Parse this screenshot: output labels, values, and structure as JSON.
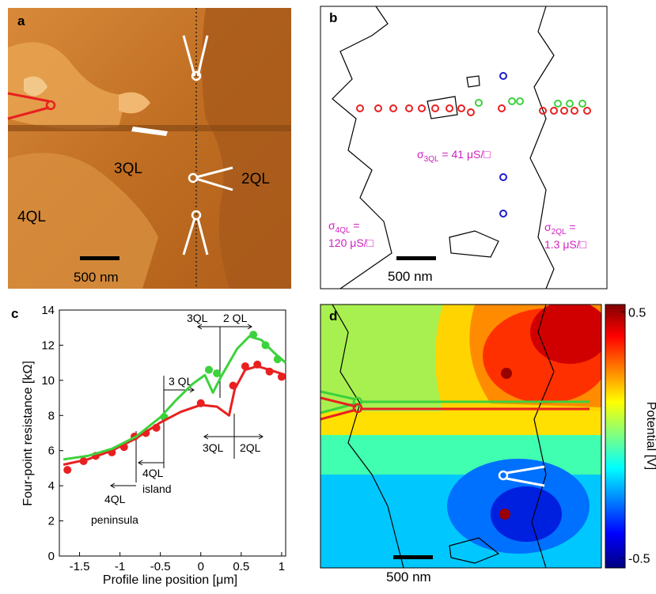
{
  "panel_a": {
    "label": "a",
    "texts": [
      "3QL",
      "2QL",
      "4QL"
    ],
    "scale_bar": "500 nm"
  },
  "panel_b": {
    "label": "b",
    "scale_bar": "500 nm",
    "sigma_3ql": {
      "symbol": "σ",
      "sub": "3QL",
      "eq": " = 41 μS/□"
    },
    "sigma_4ql": {
      "symbol": "σ",
      "sub": "4QL",
      "eq": " =",
      "value": "120 μS/□"
    },
    "sigma_2ql": {
      "symbol": "σ",
      "sub": "2QL",
      "eq": " =",
      "value": "1.3 μS/□"
    }
  },
  "chart_data": {
    "type": "line",
    "label": "c",
    "xlabel": "Profile line position [μm]",
    "ylabel": "Four-point resistance [kΩ]",
    "xlim": [
      -1.75,
      1.05
    ],
    "ylim": [
      0,
      14
    ],
    "xticks": [
      -1.5,
      -1,
      -0.5,
      0,
      0.5,
      1
    ],
    "yticks": [
      0,
      2,
      4,
      6,
      8,
      10,
      12,
      14
    ],
    "annotations": [
      "3QL",
      "2 QL",
      "3 QL",
      "3QL",
      "2QL",
      "4QL",
      "island",
      "4QL",
      "peninsula"
    ],
    "series": [
      {
        "color": "#e82020",
        "marker": true,
        "x": [
          -1.65,
          -1.45,
          -1.3,
          -1.1,
          -0.95,
          -0.82,
          -0.68,
          -0.55,
          0,
          0.4,
          0.55,
          0.7,
          0.85,
          1.0
        ],
        "values": [
          4.9,
          5.4,
          5.7,
          5.9,
          6.2,
          6.8,
          7.0,
          7.3,
          8.7,
          9.7,
          10.8,
          10.9,
          10.5,
          10.2
        ]
      },
      {
        "color": "#3cd23c",
        "marker": true,
        "x": [
          -0.45,
          0.1,
          0.2,
          0.65,
          0.8,
          0.95
        ],
        "values": [
          7.9,
          10.6,
          10.4,
          12.6,
          12.0,
          11.2
        ]
      },
      {
        "color": "#e82020",
        "marker": false,
        "x": [
          -1.7,
          -1.4,
          -1.1,
          -0.8,
          -0.5,
          -0.25,
          0,
          0.2,
          0.35,
          0.42,
          0.55,
          0.7,
          0.85,
          1.05
        ],
        "values": [
          5.2,
          5.5,
          6.0,
          6.7,
          7.6,
          8.2,
          8.6,
          8.5,
          8.0,
          9.5,
          10.6,
          10.8,
          10.6,
          10.3
        ]
      },
      {
        "color": "#3cd23c",
        "marker": false,
        "x": [
          -1.7,
          -1.4,
          -1.1,
          -0.8,
          -0.5,
          -0.3,
          -0.1,
          0.05,
          0.15,
          0.25,
          0.45,
          0.6,
          0.75,
          0.9,
          1.05
        ],
        "values": [
          5.5,
          5.7,
          6.1,
          6.8,
          7.9,
          8.9,
          9.8,
          10.3,
          9.3,
          10.2,
          11.8,
          12.5,
          12.3,
          11.6,
          11.0
        ]
      }
    ]
  },
  "panel_d": {
    "label": "d",
    "scale_bar": "500 nm",
    "colorbar": {
      "label": "Potential [V]",
      "clim": [
        -0.54,
        0.53
      ],
      "ticks": [
        0.5,
        -0.5
      ]
    }
  }
}
